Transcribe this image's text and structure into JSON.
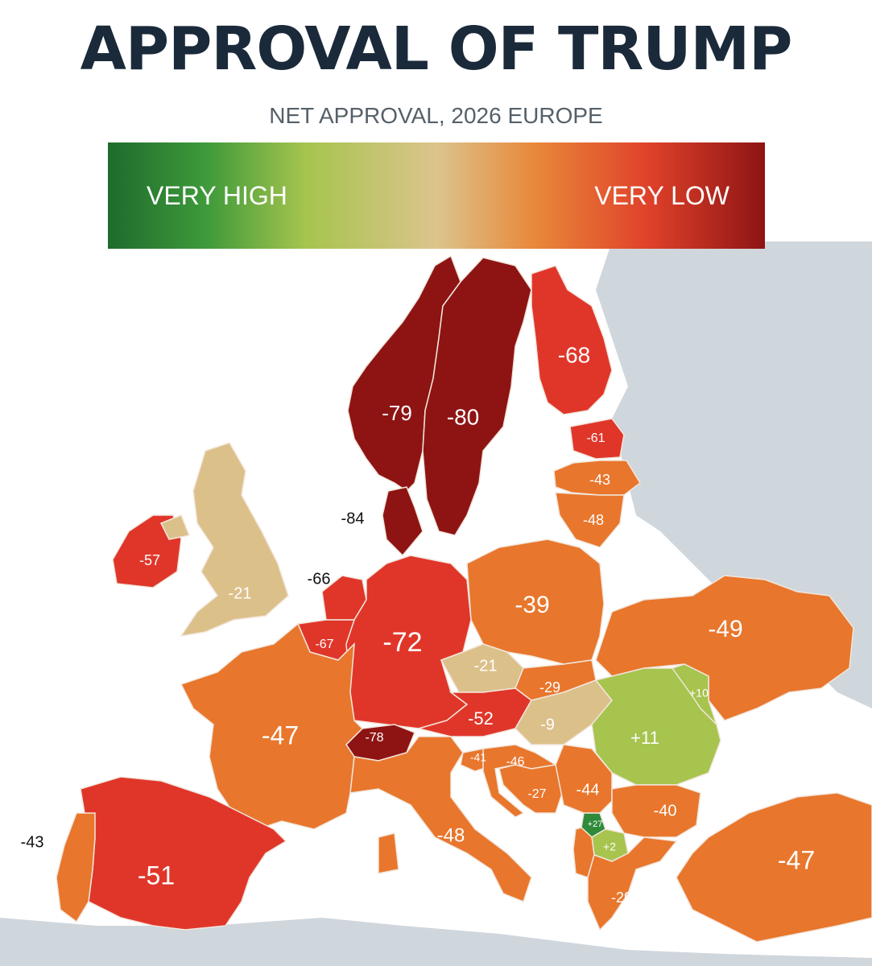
{
  "header": {
    "title": "APPROVAL OF TRUMP",
    "subtitle": "NET APPROVAL, 2026 EUROPE"
  },
  "legend": {
    "high_label": "VERY HIGH",
    "low_label": "VERY LOW",
    "colors": [
      "#1f6b2c",
      "#a6c44e",
      "#dcc48c",
      "#e8883a",
      "#e0422a",
      "#8e1414"
    ]
  },
  "colors": {
    "land_outside": "#cfd6dc",
    "sea": "#ffffff",
    "border": "#f2e6dc"
  },
  "regions": [
    {
      "id": "norway",
      "label": "-79"
    },
    {
      "id": "sweden",
      "label": "-80"
    },
    {
      "id": "finland",
      "label": "-68"
    },
    {
      "id": "estonia",
      "label": "-61"
    },
    {
      "id": "latvia",
      "label": "-43"
    },
    {
      "id": "lithuania",
      "label": "-48"
    },
    {
      "id": "denmark",
      "label": "-84"
    },
    {
      "id": "ireland",
      "label": "-57"
    },
    {
      "id": "uk",
      "label": "-21"
    },
    {
      "id": "netherlands",
      "label": "-66"
    },
    {
      "id": "belgium",
      "label": "-67"
    },
    {
      "id": "germany",
      "label": "-72"
    },
    {
      "id": "poland",
      "label": "-39"
    },
    {
      "id": "ukraine",
      "label": "-49"
    },
    {
      "id": "czechia",
      "label": "-21"
    },
    {
      "id": "slovakia",
      "label": "-29"
    },
    {
      "id": "austria",
      "label": "-52"
    },
    {
      "id": "hungary",
      "label": "-9"
    },
    {
      "id": "romania",
      "label": "+11"
    },
    {
      "id": "moldova",
      "label": "+10"
    },
    {
      "id": "switzerland",
      "label": "-78"
    },
    {
      "id": "france",
      "label": "-47"
    },
    {
      "id": "slovenia",
      "label": "-41"
    },
    {
      "id": "croatia",
      "label": "-46"
    },
    {
      "id": "bosnia",
      "label": "-27"
    },
    {
      "id": "serbia",
      "label": "-44"
    },
    {
      "id": "bulgaria",
      "label": "-40"
    },
    {
      "id": "kosovo",
      "label": "+27"
    },
    {
      "id": "north_macedonia",
      "label": "+2"
    },
    {
      "id": "albania",
      "label": "-29"
    },
    {
      "id": "italy",
      "label": "-48"
    },
    {
      "id": "spain",
      "label": "-51"
    },
    {
      "id": "portugal",
      "label": "-43"
    },
    {
      "id": "turkey",
      "label": "-47"
    }
  ]
}
